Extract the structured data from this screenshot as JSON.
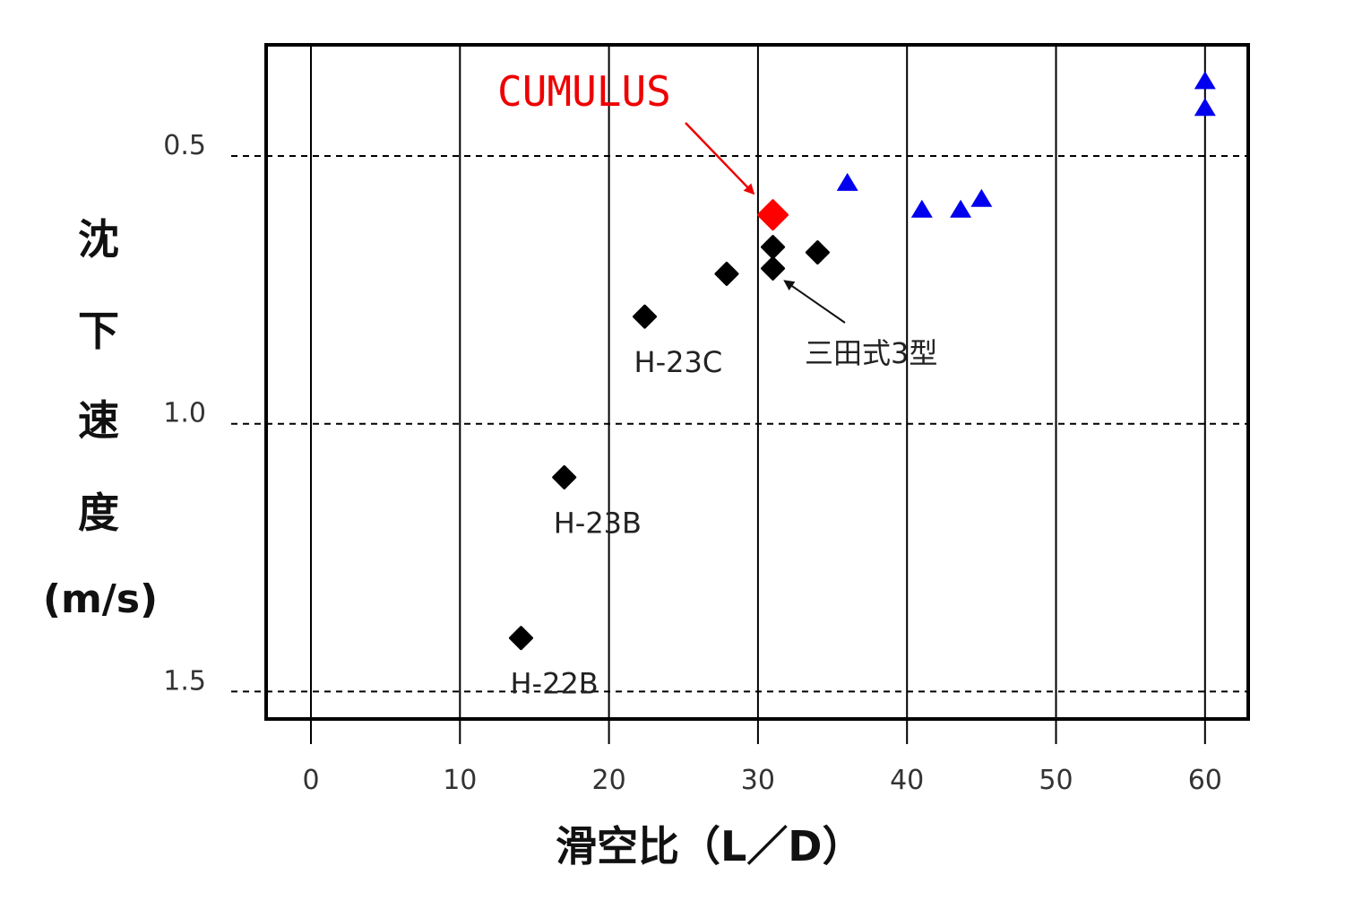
{
  "chart_data": {
    "type": "scatter",
    "xlabel": "滑空比（L／D）",
    "ylabel_chars": [
      "沈",
      "下",
      "速",
      "度"
    ],
    "ylabel_unit": "(m/s)",
    "xlim": [
      -3,
      63
    ],
    "ylim": [
      1.55,
      0.3
    ],
    "y_inverted": true,
    "x_ticks": [
      0,
      10,
      20,
      30,
      40,
      50,
      60
    ],
    "x_tick_labels": [
      "0",
      "10",
      "20",
      "30",
      "40",
      "50",
      "60"
    ],
    "y_ticks": [
      0.5,
      1.0,
      1.5
    ],
    "y_tick_labels": [
      "0.5",
      "1.0",
      "1.5"
    ],
    "grid": {
      "x": "solid",
      "y": "dashed"
    },
    "series": [
      {
        "marker": "diamond",
        "color": "#000000",
        "points": [
          {
            "x": 14.1,
            "y": 1.4,
            "label": "H-22B"
          },
          {
            "x": 17.0,
            "y": 1.1,
            "label": "H-23B"
          },
          {
            "x": 22.4,
            "y": 0.8,
            "label": "H-23C"
          },
          {
            "x": 27.9,
            "y": 0.72,
            "label": ""
          },
          {
            "x": 31.0,
            "y": 0.67,
            "label": ""
          },
          {
            "x": 31.0,
            "y": 0.71,
            "label": ""
          },
          {
            "x": 34.0,
            "y": 0.68,
            "label": ""
          }
        ]
      },
      {
        "marker": "diamond",
        "color": "#ff0000",
        "points": [
          {
            "x": 31.0,
            "y": 0.61,
            "label": ""
          }
        ]
      },
      {
        "marker": "triangle",
        "color": "#0000ee",
        "points": [
          {
            "x": 36.0,
            "y": 0.55,
            "label": ""
          },
          {
            "x": 41.0,
            "y": 0.6,
            "label": ""
          },
          {
            "x": 43.6,
            "y": 0.6,
            "label": ""
          },
          {
            "x": 45.0,
            "y": 0.58,
            "label": ""
          },
          {
            "x": 60.0,
            "y": 0.36,
            "label": ""
          },
          {
            "x": 60.0,
            "y": 0.41,
            "label": ""
          }
        ]
      }
    ],
    "annotations": [
      {
        "text": "CUMULUS",
        "color": "#ee0000",
        "target": {
          "x": 29.7,
          "y": 0.57
        }
      },
      {
        "text": "三田式3型",
        "color": "#222222",
        "target": {
          "x": 31.8,
          "y": 0.72
        }
      }
    ]
  }
}
